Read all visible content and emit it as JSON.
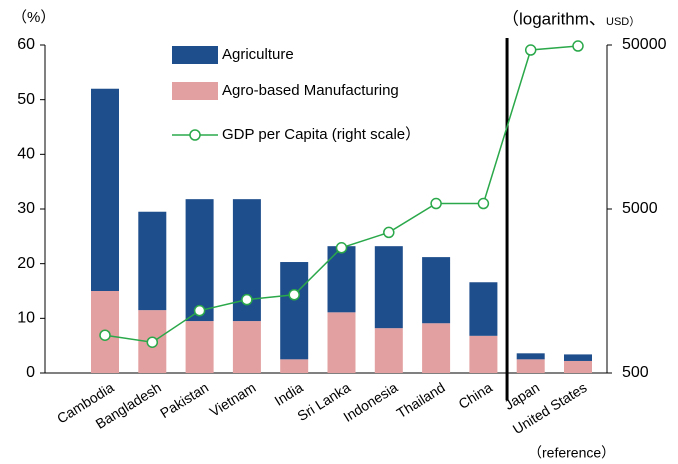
{
  "chart_data": {
    "type": "bar",
    "y_label": "（%）",
    "y2_label": "（logarithm、",
    "y2_unit": "USD）",
    "annotation": "（reference）",
    "categories": [
      "Cambodia",
      "Bangladesh",
      "Pakistan",
      "Vietnam",
      "India",
      "Sri Lanka",
      "Indonesia",
      "Thailand",
      "China",
      "Japan",
      "United States"
    ],
    "series": [
      {
        "name": "Agriculture",
        "color": "#1f4e8c",
        "values": [
          37,
          18,
          22.3,
          22.3,
          17.8,
          12.1,
          15,
          12.1,
          9.8,
          1.1,
          1.2
        ]
      },
      {
        "name": "Agro-based Manufacturing",
        "color": "#e3a0a0",
        "values": [
          15,
          11.5,
          9.5,
          9.5,
          2.5,
          11.1,
          8.2,
          9.1,
          6.8,
          2.5,
          2.2
        ]
      },
      {
        "name": "GDP per Capita (right scale）",
        "color": "#2aa84a",
        "axis": "y2",
        "type": "line",
        "values": [
          850,
          770,
          1200,
          1400,
          1500,
          2900,
          3600,
          5400,
          5400,
          46600,
          49300
        ]
      }
    ],
    "ylim": [
      0,
      60
    ],
    "yticks": [
      0,
      10,
      20,
      30,
      40,
      50,
      60
    ],
    "y2lim": [
      500,
      50000
    ],
    "y2ticks": [
      500,
      5000,
      50000
    ],
    "y2_log": true,
    "grid": false
  }
}
